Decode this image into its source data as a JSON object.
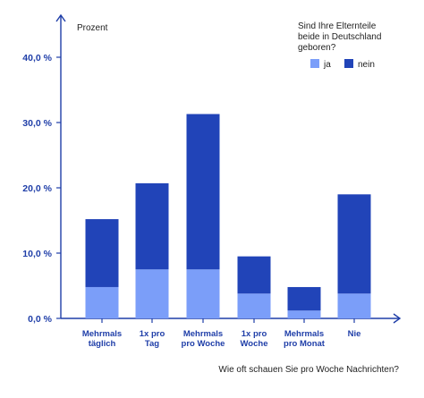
{
  "chart_data": {
    "type": "bar",
    "stacked": true,
    "ylabel": "Prozent",
    "xlabel": "Wie oft schauen Sie pro Woche Nachrichten?",
    "legend_title": "Sind Ihre Elternteile beide in Deutschland geboren?",
    "legend_placement": "top-right",
    "categories": [
      [
        "Mehrmals",
        "täglich"
      ],
      [
        "1x pro",
        "Tag"
      ],
      [
        "Mehrmals",
        "pro Woche"
      ],
      [
        "1x pro",
        "Woche"
      ],
      [
        "Mehrmals",
        "pro Monat"
      ],
      [
        "Nie"
      ]
    ],
    "series": [
      {
        "name": "ja",
        "color": "#7b9ef9",
        "values": [
          4.8,
          7.5,
          7.5,
          3.8,
          1.2,
          3.8
        ]
      },
      {
        "name": "nein",
        "color": "#2144b8",
        "values": [
          10.4,
          13.2,
          23.8,
          5.7,
          3.6,
          15.2
        ]
      }
    ],
    "ylim": [
      0,
      45
    ],
    "yticks": [
      0,
      10,
      20,
      30,
      40
    ],
    "ytick_labels": [
      "0,0 %",
      "10,0 %",
      "20,0 %",
      "30,0 %",
      "40,0 %"
    ],
    "grid": false,
    "axis_color": "#1f3ea8"
  }
}
